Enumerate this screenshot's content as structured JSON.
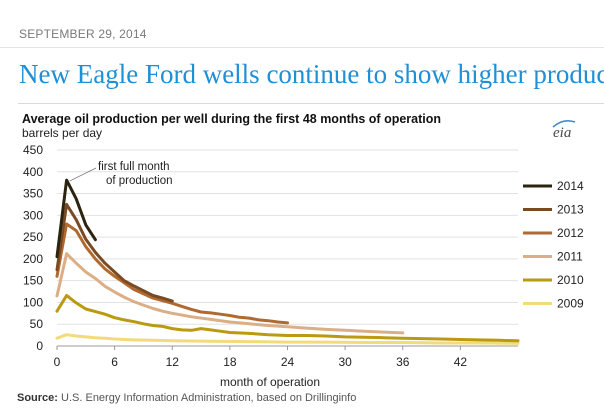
{
  "header": {
    "date": "SEPTEMBER 29, 2014",
    "headline": "New Eagle Ford wells continue to show higher production"
  },
  "logo": {
    "text": "eia"
  },
  "source": {
    "label": "Source:",
    "text": "U.S. Energy Information Administration, based on Drillinginfo"
  },
  "chart_data": {
    "type": "line",
    "title": "Average oil production per well during the first 48 months of operation",
    "ylabel": "barrels per day",
    "xlabel": "month of operation",
    "ylim": [
      0,
      450
    ],
    "xlim": [
      0,
      48
    ],
    "yticks": [
      0,
      50,
      100,
      150,
      200,
      250,
      300,
      350,
      400,
      450
    ],
    "xticks": [
      0,
      6,
      12,
      18,
      24,
      30,
      36,
      42
    ],
    "annotation": {
      "line1": "first full month",
      "line2": "of production",
      "x": 1,
      "y": 381
    },
    "series": [
      {
        "name": "2014",
        "color": "#2b2410",
        "x": [
          0,
          1,
          2,
          3,
          4
        ],
        "y": [
          205,
          381,
          338,
          278,
          244
        ]
      },
      {
        "name": "2013",
        "color": "#7a4a22",
        "x": [
          0,
          1,
          2,
          3,
          4,
          5,
          6,
          7,
          8,
          9,
          10,
          11,
          12
        ],
        "y": [
          175,
          325,
          290,
          245,
          215,
          190,
          170,
          150,
          138,
          127,
          116,
          110,
          103
        ]
      },
      {
        "name": "2012",
        "color": "#b06a30",
        "x": [
          0,
          1,
          2,
          3,
          4,
          5,
          6,
          7,
          8,
          9,
          10,
          11,
          12,
          13,
          14,
          15,
          16,
          17,
          18,
          19,
          20,
          21,
          22,
          23,
          24
        ],
        "y": [
          160,
          280,
          265,
          228,
          200,
          177,
          160,
          145,
          130,
          120,
          110,
          104,
          98,
          91,
          84,
          78,
          76,
          73,
          70,
          66,
          64,
          60,
          58,
          55,
          53
        ]
      },
      {
        "name": "2011",
        "color": "#dcae86",
        "x": [
          0,
          1,
          2,
          3,
          4,
          5,
          6,
          7,
          8,
          9,
          10,
          11,
          12,
          14,
          16,
          18,
          20,
          22,
          24,
          26,
          28,
          30,
          32,
          34,
          36
        ],
        "y": [
          115,
          212,
          190,
          170,
          155,
          137,
          124,
          112,
          102,
          94,
          86,
          80,
          75,
          67,
          61,
          55,
          51,
          47,
          44,
          41,
          38,
          36,
          34,
          32,
          30
        ]
      },
      {
        "name": "2010",
        "color": "#b99a10",
        "x": [
          0,
          1,
          2,
          3,
          4,
          5,
          6,
          7,
          8,
          9,
          10,
          11,
          12,
          13,
          14,
          15,
          16,
          17,
          18,
          20,
          22,
          24,
          26,
          28,
          30,
          32,
          34,
          36,
          38,
          40,
          42,
          44,
          46,
          48
        ],
        "y": [
          80,
          116,
          99,
          85,
          79,
          73,
          65,
          60,
          56,
          51,
          47,
          45,
          40,
          37,
          36,
          40,
          37,
          34,
          31,
          29,
          26,
          24,
          24,
          23,
          21,
          20,
          19,
          18,
          17,
          16,
          15,
          14,
          13,
          12
        ]
      },
      {
        "name": "2009",
        "color": "#f3da7a",
        "x": [
          0,
          1,
          2,
          3,
          4,
          5,
          6,
          8,
          10,
          12,
          16,
          20,
          24,
          28,
          32,
          36,
          40,
          44,
          48
        ],
        "y": [
          18,
          26,
          23,
          21,
          19,
          18,
          16,
          14,
          13,
          12,
          11,
          10,
          9,
          9,
          8,
          8,
          7,
          7,
          6
        ]
      }
    ]
  }
}
